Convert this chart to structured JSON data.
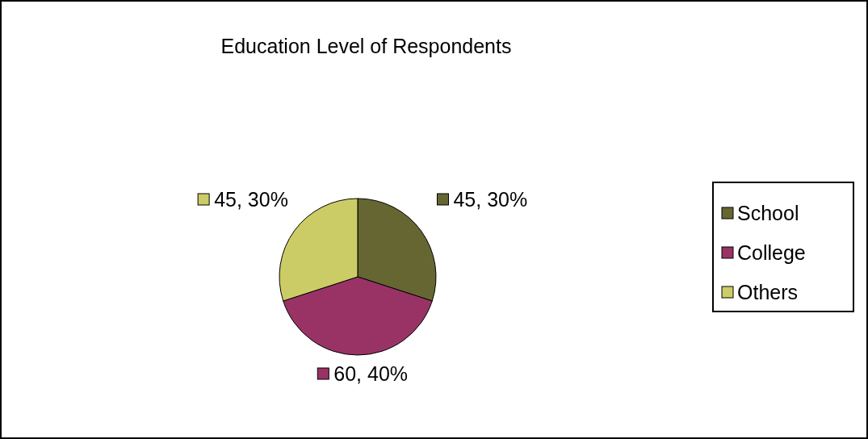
{
  "chart_data": {
    "type": "pie",
    "title": "Education Level of Respondents",
    "categories": [
      "School",
      "College",
      "Others"
    ],
    "values": [
      45,
      60,
      45
    ],
    "colors": [
      "#666633",
      "#993366",
      "#cccc66"
    ],
    "value_labels": [
      "45, 30%",
      "60, 40%",
      "45, 30%"
    ],
    "legend": "right"
  }
}
